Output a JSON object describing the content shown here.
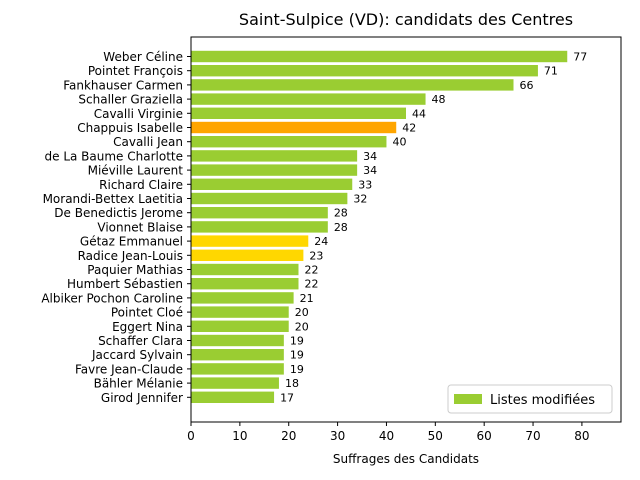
{
  "chart_data": {
    "type": "bar",
    "orientation": "horizontal",
    "title": "Saint-Sulpice (VD): candidats des Centres",
    "xlabel": "Suffrages des Candidats",
    "ylabel": "",
    "xlim": [
      0,
      88
    ],
    "xticks": [
      0,
      10,
      20,
      30,
      40,
      50,
      60,
      70,
      80
    ],
    "categories": [
      "Weber Céline",
      "Pointet François",
      "Fankhauser Carmen",
      "Schaller Graziella",
      "Cavalli Virginie",
      "Chappuis Isabelle",
      "Cavalli Jean",
      "de La Baume Charlotte",
      "Miéville Laurent",
      "Richard Claire",
      "Morandi-Bettex Laetitia",
      "De Benedictis Jerome",
      "Vionnet Blaise",
      "Gétaz Emmanuel",
      "Radice Jean-Louis",
      "Paquier Mathias",
      "Humbert Sébastien",
      "Albiker Pochon Caroline",
      "Pointet Cloé",
      "Eggert Nina",
      "Schaffer Clara",
      "Jaccard Sylvain",
      "Favre Jean-Claude",
      "Bähler Mélanie",
      "Girod Jennifer"
    ],
    "values": [
      77,
      71,
      66,
      48,
      44,
      42,
      40,
      34,
      34,
      33,
      32,
      28,
      28,
      24,
      23,
      22,
      22,
      21,
      20,
      20,
      19,
      19,
      19,
      18,
      17
    ],
    "bar_colors": [
      "#9acd32",
      "#9acd32",
      "#9acd32",
      "#9acd32",
      "#9acd32",
      "#ffa500",
      "#9acd32",
      "#9acd32",
      "#9acd32",
      "#9acd32",
      "#9acd32",
      "#9acd32",
      "#9acd32",
      "#ffd700",
      "#ffd700",
      "#9acd32",
      "#9acd32",
      "#9acd32",
      "#9acd32",
      "#9acd32",
      "#9acd32",
      "#9acd32",
      "#9acd32",
      "#9acd32",
      "#9acd32"
    ],
    "legend": {
      "position": "lower-right",
      "entries": [
        {
          "label": "Listes modifiées",
          "color": "#9acd32"
        }
      ]
    },
    "grid": false
  }
}
